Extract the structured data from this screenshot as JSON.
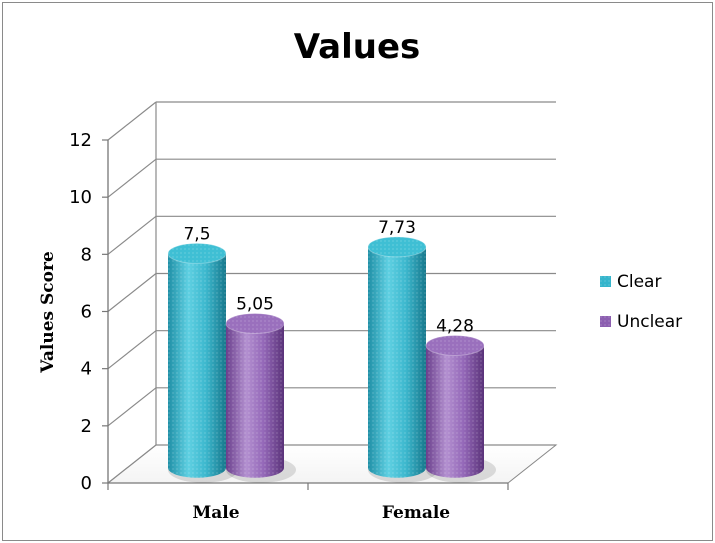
{
  "chart_data": {
    "type": "bar",
    "title": "Values",
    "xlabel": "",
    "ylabel": "Values Score",
    "ylim": [
      0,
      12
    ],
    "yticks": [
      0,
      2,
      4,
      6,
      8,
      10,
      12
    ],
    "categories": [
      "Male",
      "Female"
    ],
    "series": [
      {
        "name": "Clear",
        "values": [
          7.5,
          7.73
        ],
        "labels": [
          "7,5",
          "7,73"
        ],
        "color": "#35b5cc"
      },
      {
        "name": "Unclear",
        "values": [
          5.05,
          4.28
        ],
        "labels": [
          "5,05",
          "4,28"
        ],
        "color": "#8c5fb0"
      }
    ],
    "grid": true,
    "legend_position": "right",
    "style": "3d-cylinder"
  }
}
